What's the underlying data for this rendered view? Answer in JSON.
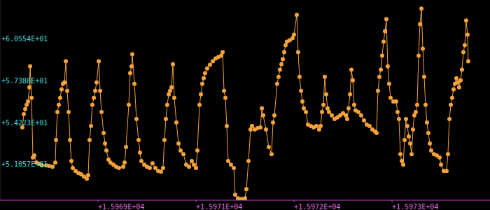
{
  "chart_data": {
    "type": "line",
    "color": "#f5a23a",
    "marker": "circle",
    "line_style": "solid",
    "grid": false,
    "xlim": [
      15968.2,
      15974.2
    ],
    "ylim": [
      48.3,
      63.5
    ],
    "xticks": [
      {
        "value": 15969.4,
        "label": "+1.5969E+04"
      },
      {
        "value": 15970.6,
        "label": "+1.5971E+04"
      },
      {
        "value": 15971.8,
        "label": "+1.5972E+04"
      },
      {
        "value": 15973.0,
        "label": "+1.5973E+04"
      }
    ],
    "yticks": [
      {
        "value": 51.057,
        "label": "+5.1057E+01"
      },
      {
        "value": 54.223,
        "label": "+5.4223E+01"
      },
      {
        "value": 57.388,
        "label": "+5.7388E+01"
      },
      {
        "value": 60.554,
        "label": "+6.0554E+01"
      }
    ],
    "x": [
      15968.474,
      15968.491,
      15968.509,
      15968.526,
      15968.543,
      15968.56,
      15968.569,
      15968.586,
      15968.603,
      15968.62,
      15968.646,
      15968.68,
      15968.714,
      15968.766,
      15968.8,
      15968.843,
      15968.877,
      15968.886,
      15968.903,
      15968.92,
      15968.937,
      15968.954,
      15968.971,
      15968.989,
      15969.006,
      15969.023,
      15969.04,
      15969.057,
      15969.074,
      15969.091,
      15969.126,
      15969.16,
      15969.194,
      15969.229,
      15969.263,
      15969.28,
      15969.297,
      15969.314,
      15969.331,
      15969.349,
      15969.366,
      15969.383,
      15969.409,
      15969.426,
      15969.443,
      15969.469,
      15969.486,
      15969.503,
      15969.529,
      15969.554,
      15969.589,
      15969.623,
      15969.657,
      15969.709,
      15969.726,
      15969.743,
      15969.777,
      15969.794,
      15969.811,
      15969.82,
      15969.846,
      15969.871,
      15969.897,
      15969.914,
      15969.931,
      15969.966,
      15970.0,
      15970.034,
      15970.068,
      15970.103,
      15970.137,
      15970.171,
      15970.197,
      15970.214,
      15970.231,
      15970.248,
      15970.266,
      15970.283,
      15970.3,
      15970.317,
      15970.334,
      15970.36,
      15970.386,
      15970.411,
      15970.446,
      15970.48,
      15970.514,
      15970.548,
      15970.574,
      15970.6,
      15970.617,
      15970.643,
      15970.66,
      15970.677,
      15970.694,
      15970.711,
      15970.737,
      15970.771,
      15970.806,
      15970.84,
      15970.874,
      15970.908,
      15970.926,
      15970.943,
      15970.96,
      15970.977,
      15970.994,
      15971.028,
      15971.063,
      15971.08,
      15971.114,
      15971.157,
      15971.2,
      15971.217,
      15971.243,
      15971.268,
      15971.286,
      15971.32,
      15971.354,
      15971.388,
      15971.406,
      15971.423,
      15971.457,
      15971.491,
      15971.525,
      15971.543,
      15971.56,
      15971.594,
      15971.611,
      15971.628,
      15971.646,
      15971.663,
      15971.68,
      15971.697,
      15971.714,
      15971.748,
      15971.783,
      15971.8,
      15971.834,
      15971.851,
      15971.868,
      15971.886,
      15971.903,
      15971.92,
      15971.946,
      15971.971,
      15972.006,
      15972.04,
      15972.074,
      15972.108,
      15972.126,
      15972.143,
      15972.16,
      15972.177,
      15972.194,
      15972.211,
      15972.228,
      15972.263,
      15972.297,
      15972.331,
      15972.366,
      15972.4,
      15972.434,
      15972.451,
      15972.468,
      15972.486,
      15972.503,
      15972.52,
      15972.537,
      15972.554,
      15972.588,
      15972.622,
      15972.657,
      15972.691,
      15972.725,
      15972.76,
      15972.794,
      15972.811,
      15972.828,
      15972.846,
      15972.863,
      15972.88,
      15972.897,
      15972.914,
      15972.931,
      15972.948,
      15972.965,
      15972.983,
      15973.017,
      15973.051,
      15973.068,
      15973.085,
      15973.103,
      15973.12,
      15973.137,
      15973.154,
      15973.171,
      15973.188,
      15973.205,
      15973.223,
      15973.24,
      15973.257,
      15973.274,
      15973.291,
      15973.308,
      15973.326,
      15973.343,
      15973.36,
      15973.377,
      15973.394,
      15973.411,
      15973.428,
      15973.445,
      15973.463,
      15973.48,
      15973.514,
      15973.548,
      15973.583,
      15973.6,
      15973.634,
      15973.668,
      15973.685,
      15973.703,
      15973.72,
      15973.737,
      15973.754,
      15973.771,
      15973.788,
      15973.805,
      15973.822,
      15973.84,
      15973.857,
      15973.874,
      15973.891,
      15973.908,
      15973.925,
      15973.934
    ],
    "values": [
      53.83,
      54.84,
      55.22,
      55.54,
      55.8,
      56.87,
      58.47,
      56.07,
      51.54,
      51.7,
      51.16,
      51.06,
      50.95,
      50.95,
      50.9,
      50.84,
      51.16,
      52.87,
      55.0,
      55.54,
      56.07,
      56.71,
      57.14,
      57.24,
      58.85,
      56.6,
      55.0,
      52.87,
      51.27,
      50.74,
      50.52,
      50.36,
      50.26,
      50.1,
      49.94,
      50.2,
      52.87,
      53.94,
      55.54,
      56.07,
      56.6,
      57.24,
      58.85,
      56.6,
      55.0,
      53.4,
      52.6,
      52.07,
      51.38,
      51.16,
      51.0,
      50.84,
      50.74,
      50.84,
      51.16,
      52.34,
      55.54,
      57.94,
      58.47,
      59.38,
      57.14,
      54.47,
      52.87,
      51.91,
      51.27,
      51.0,
      50.84,
      50.74,
      51.11,
      50.74,
      50.52,
      50.47,
      50.74,
      52.87,
      54.47,
      55.54,
      56.34,
      56.6,
      56.87,
      58.63,
      56.07,
      54.2,
      52.6,
      52.07,
      51.8,
      51.0,
      50.84,
      51.27,
      51.0,
      50.74,
      52.07,
      55.54,
      56.34,
      57.14,
      57.56,
      57.94,
      58.31,
      58.58,
      58.85,
      59.06,
      59.17,
      59.27,
      59.54,
      56.6,
      56.07,
      53.94,
      51.27,
      51.0,
      50.74,
      48.71,
      48.44,
      48.39,
      48.44,
      49.14,
      51.27,
      53.67,
      53.94,
      53.67,
      53.78,
      53.83,
      55.27,
      54.74,
      53.67,
      52.34,
      51.8,
      54.2,
      54.74,
      57.14,
      57.67,
      58.21,
      58.63,
      59.01,
      59.54,
      60.07,
      60.34,
      60.45,
      60.61,
      60.87,
      62.37,
      59.54,
      57.67,
      56.6,
      55.8,
      55.27,
      55.0,
      54.04,
      53.94,
      53.83,
      53.94,
      53.67,
      53.94,
      55.0,
      55.54,
      57.67,
      56.34,
      55.27,
      55.0,
      54.74,
      54.47,
      54.58,
      54.74,
      54.9,
      54.74,
      54.47,
      55.27,
      56.34,
      58.21,
      57.4,
      55.54,
      55.11,
      55.0,
      54.74,
      54.36,
      54.04,
      53.94,
      53.67,
      53.51,
      53.4,
      56.6,
      57.67,
      58.21,
      59.27,
      60.34,
      61.14,
      62.05,
      58.47,
      57.14,
      56.07,
      55.8,
      55.8,
      55.0,
      54.47,
      51.8,
      51.27,
      51.0,
      52.87,
      54.47,
      53.94,
      53.14,
      52.6,
      51.8,
      53.67,
      54.74,
      55.0,
      55.54,
      59.27,
      61.67,
      62.85,
      59.81,
      57.67,
      55.54,
      54.2,
      53.4,
      52.6,
      52.07,
      51.8,
      51.7,
      51.54,
      51.0,
      50.52,
      50.52,
      51.8,
      54.47,
      55.54,
      56.07,
      56.71,
      57.14,
      57.56,
      57.24,
      56.87,
      57.4,
      58.21,
      59.54,
      60.07,
      61.94,
      60.87,
      58.85
    ]
  }
}
